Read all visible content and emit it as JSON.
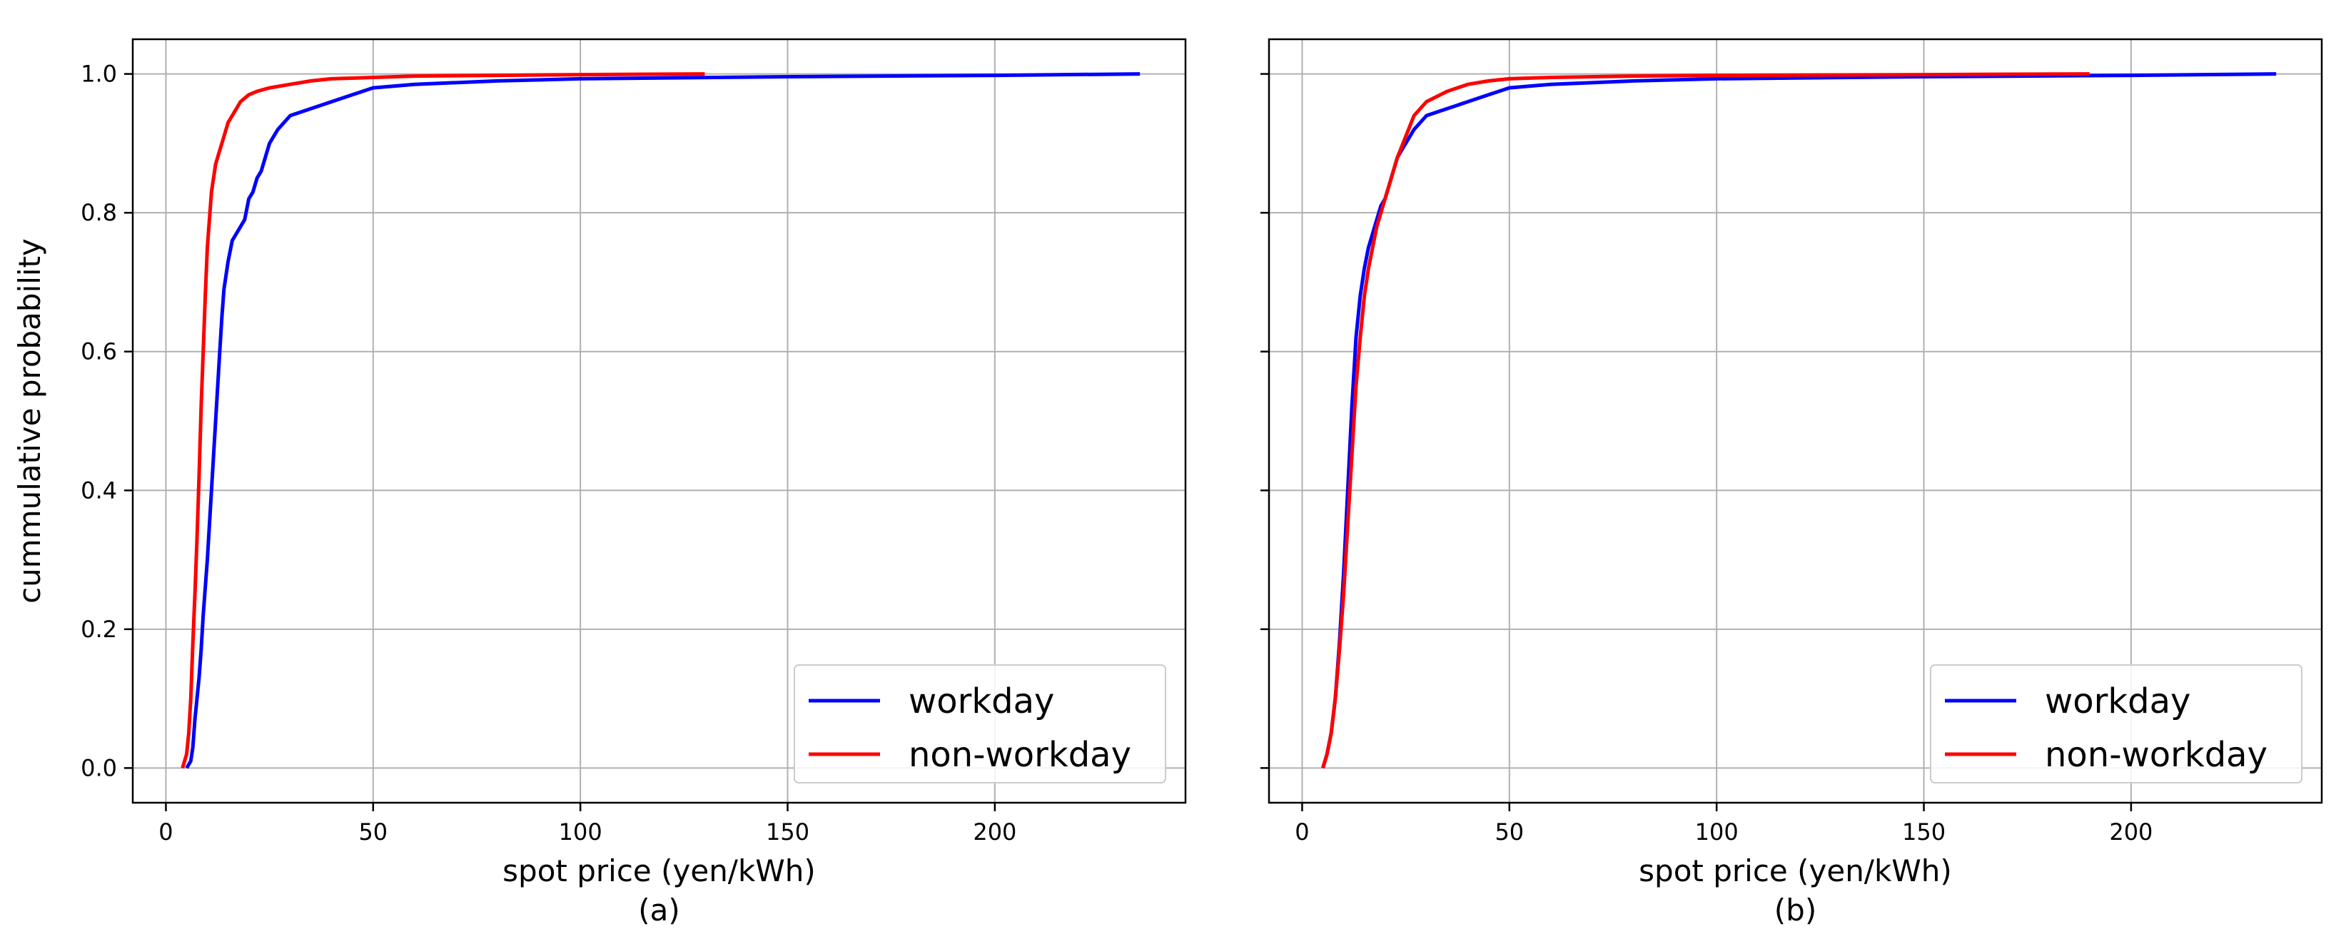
{
  "chart_data": [
    {
      "type": "line",
      "caption": "(a)",
      "xlabel": "spot price (yen/kWh)",
      "ylabel": "cummulative probability",
      "xlim": [
        -8,
        246
      ],
      "ylim": [
        -0.05,
        1.05
      ],
      "xticks": [
        0,
        50,
        100,
        150,
        200
      ],
      "xtick_labels": [
        "0",
        "50",
        "100",
        "150",
        "200"
      ],
      "yticks": [
        0.0,
        0.2,
        0.4,
        0.6,
        0.8,
        1.0
      ],
      "ytick_labels": [
        "0.0",
        "0.2",
        "0.4",
        "0.6",
        "0.8",
        "1.0"
      ],
      "grid": true,
      "legend_position": "bottom-right",
      "series": [
        {
          "name": "workday",
          "color": "#0000ff",
          "x": [
            5,
            6,
            6.5,
            7,
            7.5,
            8,
            8.5,
            9,
            10,
            11,
            12,
            13,
            13.5,
            14,
            15,
            16,
            17,
            18,
            19,
            20,
            21,
            22,
            23,
            24,
            25,
            27,
            30,
            35,
            40,
            45,
            50,
            60,
            80,
            100,
            150,
            200,
            235
          ],
          "y": [
            0.0,
            0.01,
            0.03,
            0.07,
            0.1,
            0.13,
            0.17,
            0.22,
            0.3,
            0.4,
            0.5,
            0.6,
            0.65,
            0.69,
            0.73,
            0.76,
            0.77,
            0.78,
            0.79,
            0.82,
            0.83,
            0.85,
            0.86,
            0.88,
            0.9,
            0.92,
            0.94,
            0.95,
            0.96,
            0.97,
            0.98,
            0.985,
            0.99,
            0.993,
            0.996,
            0.998,
            1.0
          ]
        },
        {
          "name": "non-workday",
          "color": "#ff0000",
          "x": [
            4,
            5,
            5.5,
            6,
            6.5,
            7,
            7.5,
            8,
            8.5,
            9,
            9.5,
            10,
            11,
            12,
            13,
            14,
            15,
            16,
            17,
            18,
            20,
            22,
            25,
            30,
            35,
            40,
            50,
            60,
            80,
            100,
            130
          ],
          "y": [
            0.0,
            0.02,
            0.05,
            0.1,
            0.18,
            0.25,
            0.33,
            0.42,
            0.52,
            0.6,
            0.68,
            0.75,
            0.83,
            0.87,
            0.89,
            0.91,
            0.93,
            0.94,
            0.95,
            0.96,
            0.97,
            0.975,
            0.98,
            0.985,
            0.99,
            0.993,
            0.995,
            0.997,
            0.998,
            0.999,
            1.0
          ]
        }
      ]
    },
    {
      "type": "line",
      "caption": "(b)",
      "xlabel": "spot price (yen/kWh)",
      "ylabel": "",
      "xlim": [
        -8,
        246
      ],
      "ylim": [
        -0.05,
        1.05
      ],
      "xticks": [
        0,
        50,
        100,
        150,
        200
      ],
      "xtick_labels": [
        "0",
        "50",
        "100",
        "150",
        "200"
      ],
      "yticks": [
        0.0,
        0.2,
        0.4,
        0.6,
        0.8,
        1.0
      ],
      "ytick_labels": [],
      "grid": true,
      "legend_position": "bottom-right",
      "series": [
        {
          "name": "workday",
          "color": "#0000ff",
          "x": [
            5,
            6,
            7,
            8,
            9,
            10,
            11,
            12,
            13,
            14,
            15,
            16,
            17,
            18,
            19,
            20,
            21,
            22,
            23,
            24,
            25,
            27,
            30,
            35,
            40,
            45,
            50,
            60,
            80,
            100,
            150,
            200,
            235
          ],
          "y": [
            0.0,
            0.02,
            0.05,
            0.1,
            0.18,
            0.28,
            0.4,
            0.52,
            0.62,
            0.68,
            0.72,
            0.75,
            0.77,
            0.79,
            0.81,
            0.82,
            0.84,
            0.86,
            0.88,
            0.89,
            0.9,
            0.92,
            0.94,
            0.95,
            0.96,
            0.97,
            0.98,
            0.985,
            0.99,
            0.993,
            0.996,
            0.998,
            1.0
          ]
        },
        {
          "name": "non-workday",
          "color": "#ff0000",
          "x": [
            5,
            6,
            7,
            8,
            9,
            10,
            11,
            12,
            13,
            14,
            15,
            16,
            17,
            18,
            19,
            20,
            21,
            22,
            23,
            25,
            27,
            30,
            35,
            40,
            45,
            50,
            60,
            80,
            100,
            150,
            190
          ],
          "y": [
            0.0,
            0.02,
            0.05,
            0.1,
            0.17,
            0.25,
            0.35,
            0.45,
            0.55,
            0.62,
            0.68,
            0.72,
            0.75,
            0.78,
            0.8,
            0.82,
            0.84,
            0.86,
            0.88,
            0.91,
            0.94,
            0.96,
            0.975,
            0.985,
            0.99,
            0.993,
            0.995,
            0.997,
            0.998,
            0.999,
            1.0
          ]
        }
      ]
    }
  ]
}
